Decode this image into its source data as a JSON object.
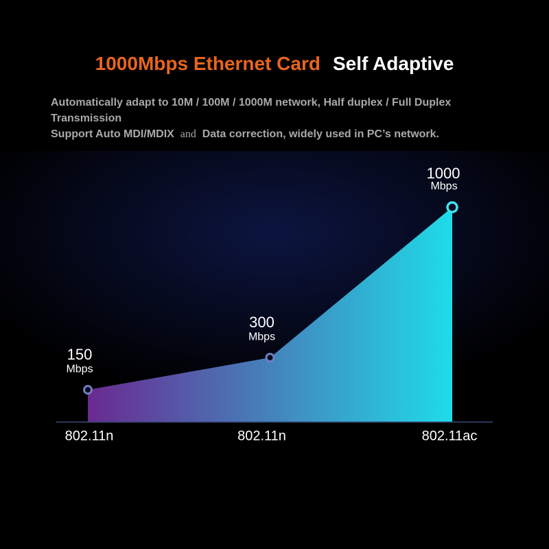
{
  "chart_data": {
    "type": "area",
    "title": [
      "1000Mbps Ethernet Card",
      "Self Adaptive"
    ],
    "subtitle": [
      "Automatically adapt to 10M / 100M / 1000M network, Half duplex / Full Duplex Transmission",
      "Support Auto MDI/MDIX",
      "and",
      "Data correction, widely used in PC’s network."
    ],
    "categories": [
      "802.11n",
      "802.11n",
      "802.11ac"
    ],
    "values": [
      150,
      300,
      1000
    ],
    "unit": "Mbps",
    "colors": [
      "#6a2a90",
      "#1fdbe8"
    ]
  }
}
